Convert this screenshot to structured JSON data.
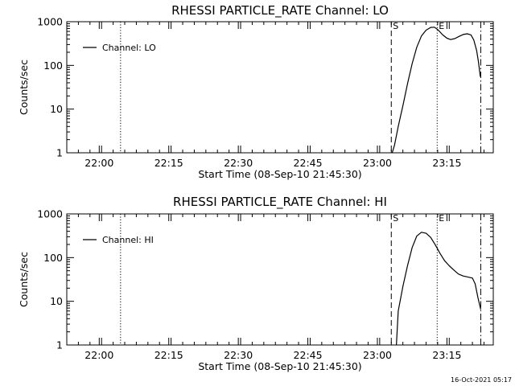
{
  "footer": {
    "timestamp": "16-Oct-2021 05:17"
  },
  "chart_data": [
    {
      "type": "line",
      "title": "RHESSI PARTICLE_RATE Channel: LO",
      "xlabel": "Start Time (08-Sep-10 21:45:30)",
      "ylabel": "Counts/sec",
      "x_unit": "minutes after 21:45:30",
      "xlim": [
        7.5,
        99.5
      ],
      "ylim": [
        1,
        1000
      ],
      "y_scale": "log",
      "x_ticks": [
        "22:00",
        "22:15",
        "22:30",
        "22:45",
        "23:00",
        "23:15"
      ],
      "y_ticks": [
        "1",
        "10",
        "100",
        "1000"
      ],
      "legend": {
        "entries": [
          "Channel: LO"
        ],
        "placement": "top-left"
      },
      "markers": [
        {
          "label": "",
          "x": 19.1,
          "style": "dotted"
        },
        {
          "label": "S",
          "x": 77.5,
          "style": "dashed"
        },
        {
          "label": "E",
          "x": 87.4,
          "style": "dotted"
        },
        {
          "label": "",
          "x": 96.8,
          "style": "dashdot"
        }
      ],
      "series": [
        {
          "name": "Channel: LO",
          "x": [
            77.7,
            78.2,
            79.0,
            80.0,
            81.0,
            82.0,
            83.0,
            84.0,
            85.0,
            86.0,
            86.8,
            87.6,
            88.6,
            89.5,
            90.3,
            91.2,
            92.1,
            93.0,
            93.9,
            94.7,
            95.3,
            95.9,
            96.3,
            96.7
          ],
          "y": [
            1.0,
            1.5,
            4.0,
            12,
            38,
            110,
            260,
            470,
            640,
            740,
            750,
            650,
            500,
            420,
            390,
            410,
            460,
            510,
            530,
            500,
            380,
            220,
            120,
            55
          ]
        }
      ]
    },
    {
      "type": "line",
      "title": "RHESSI PARTICLE_RATE Channel: HI",
      "xlabel": "Start Time (08-Sep-10 21:45:30)",
      "ylabel": "Counts/sec",
      "x_unit": "minutes after 21:45:30",
      "xlim": [
        7.5,
        99.5
      ],
      "ylim": [
        1,
        1000
      ],
      "y_scale": "log",
      "x_ticks": [
        "22:00",
        "22:15",
        "22:30",
        "22:45",
        "23:00",
        "23:15"
      ],
      "y_ticks": [
        "1",
        "10",
        "100",
        "1000"
      ],
      "legend": {
        "entries": [
          "Channel: HI"
        ],
        "placement": "top-left"
      },
      "markers": [
        {
          "label": "",
          "x": 19.1,
          "style": "dotted"
        },
        {
          "label": "S",
          "x": 77.5,
          "style": "dashed"
        },
        {
          "label": "E",
          "x": 87.4,
          "style": "dotted"
        },
        {
          "label": "",
          "x": 96.8,
          "style": "dashdot"
        }
      ],
      "series": [
        {
          "name": "Channel: HI",
          "x": [
            78.6,
            79.0,
            80.0,
            81.0,
            82.0,
            83.0,
            84.0,
            85.0,
            86.0,
            87.0,
            88.0,
            89.0,
            90.0,
            91.0,
            92.0,
            93.0,
            94.0,
            95.0,
            95.6,
            96.2,
            96.8
          ],
          "y": [
            1.0,
            6.0,
            22,
            65,
            170,
            310,
            380,
            360,
            290,
            195,
            125,
            85,
            65,
            52,
            42,
            38,
            36,
            34,
            25,
            12,
            6.5
          ]
        }
      ]
    }
  ]
}
